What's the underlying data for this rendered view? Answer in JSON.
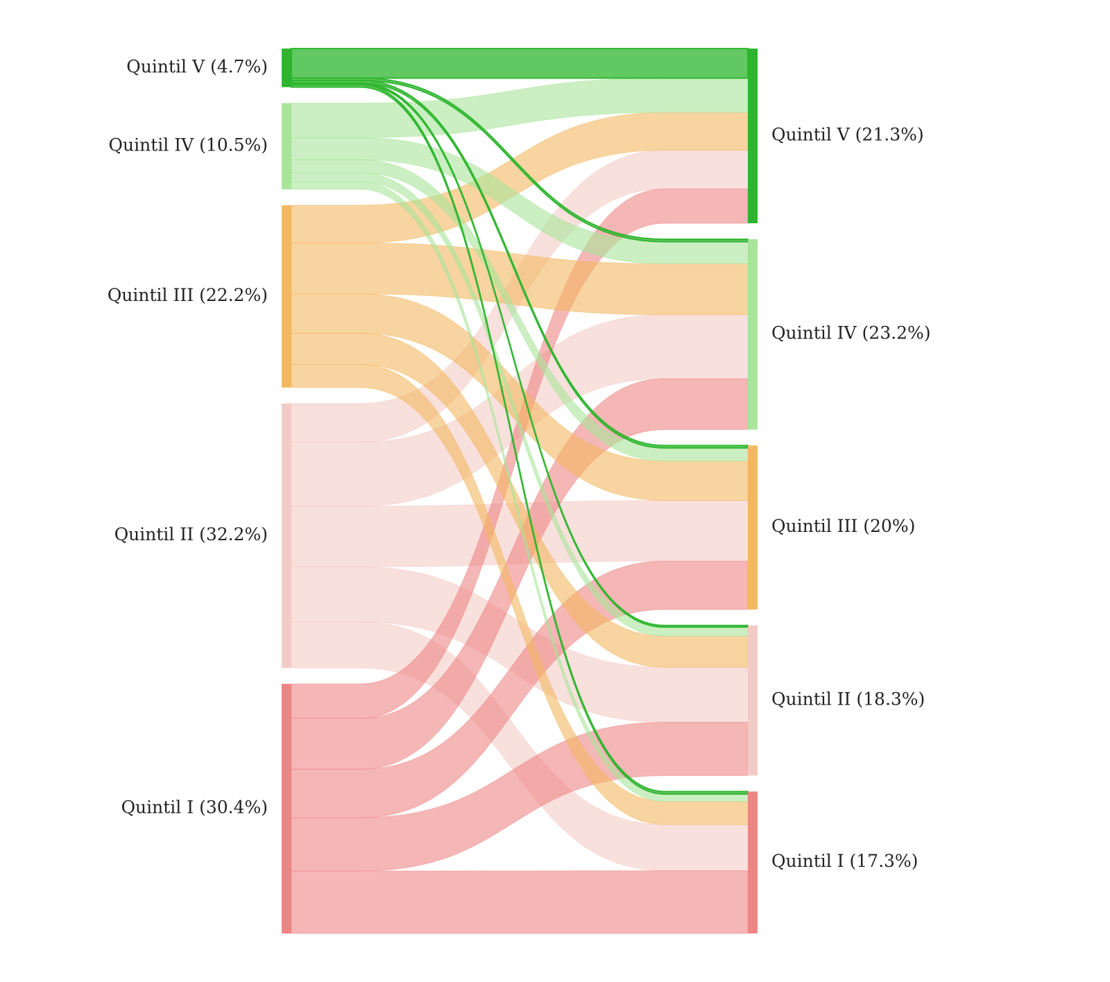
{
  "chart_data": {
    "type": "sankey",
    "title": "",
    "left_nodes": [
      {
        "id": "L5",
        "label": "Quintil V (4.7%)",
        "value": 4.7,
        "color": "#2db52d"
      },
      {
        "id": "L4",
        "label": "Quintil IV (10.5%)",
        "value": 10.5,
        "color": "#a8e59a"
      },
      {
        "id": "L3",
        "label": "Quintil III (22.2%)",
        "value": 22.2,
        "color": "#f3b760"
      },
      {
        "id": "L2",
        "label": "Quintil II (32.2%)",
        "value": 32.2,
        "color": "#f3cbc6"
      },
      {
        "id": "L1",
        "label": "Quintil I (30.4%)",
        "value": 30.4,
        "color": "#ee8585"
      }
    ],
    "right_nodes": [
      {
        "id": "R5",
        "label": "Quintil V (21.3%)",
        "value": 21.3,
        "color": "#2db52d"
      },
      {
        "id": "R4",
        "label": "Quintil IV (23.2%)",
        "value": 23.2,
        "color": "#a8e59a"
      },
      {
        "id": "R3",
        "label": "Quintil III (20%)",
        "value": 20.0,
        "color": "#f3b760"
      },
      {
        "id": "R2",
        "label": "Quintil II (18.3%)",
        "value": 18.3,
        "color": "#f3cbc6"
      },
      {
        "id": "R1",
        "label": "Quintil I (17.3%)",
        "value": 17.3,
        "color": "#ee8585"
      }
    ],
    "flows": [
      {
        "source": "L5",
        "target": "R5",
        "value": 3.6
      },
      {
        "source": "L5",
        "target": "R4",
        "value": 0.3
      },
      {
        "source": "L5",
        "target": "R3",
        "value": 0.3
      },
      {
        "source": "L5",
        "target": "R2",
        "value": 0.2
      },
      {
        "source": "L5",
        "target": "R1",
        "value": 0.3
      },
      {
        "source": "L4",
        "target": "R5",
        "value": 4.2
      },
      {
        "source": "L4",
        "target": "R4",
        "value": 2.7
      },
      {
        "source": "L4",
        "target": "R3",
        "value": 1.6
      },
      {
        "source": "L4",
        "target": "R2",
        "value": 1.1
      },
      {
        "source": "L4",
        "target": "R1",
        "value": 0.9
      },
      {
        "source": "L3",
        "target": "R5",
        "value": 4.6
      },
      {
        "source": "L3",
        "target": "R4",
        "value": 6.2
      },
      {
        "source": "L3",
        "target": "R3",
        "value": 4.8
      },
      {
        "source": "L3",
        "target": "R2",
        "value": 3.8
      },
      {
        "source": "L3",
        "target": "R1",
        "value": 2.8
      },
      {
        "source": "L2",
        "target": "R5",
        "value": 4.7
      },
      {
        "source": "L2",
        "target": "R4",
        "value": 7.8
      },
      {
        "source": "L2",
        "target": "R3",
        "value": 7.4
      },
      {
        "source": "L2",
        "target": "R2",
        "value": 6.7
      },
      {
        "source": "L2",
        "target": "R1",
        "value": 5.6
      },
      {
        "source": "L1",
        "target": "R5",
        "value": 4.2
      },
      {
        "source": "L1",
        "target": "R4",
        "value": 6.2
      },
      {
        "source": "L1",
        "target": "R3",
        "value": 5.9
      },
      {
        "source": "L1",
        "target": "R2",
        "value": 6.5
      },
      {
        "source": "L1",
        "target": "R1",
        "value": 7.6
      }
    ],
    "legend": "none",
    "grid": false
  }
}
